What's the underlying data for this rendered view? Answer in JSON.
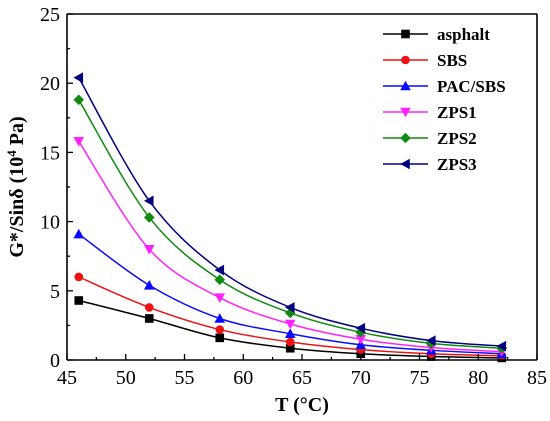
{
  "chart_data": {
    "type": "line",
    "xlabel": "T (°C)",
    "ylabel": "G*/Sinδ (10",
    "ylabel_sup": "4",
    "ylabel_tail": " Pa)",
    "xlim": [
      45,
      85
    ],
    "ylim": [
      0,
      25
    ],
    "xticks": [
      "45",
      "50",
      "55",
      "60",
      "65",
      "70",
      "75",
      "80",
      "85"
    ],
    "yticks": [
      "0",
      "5",
      "10",
      "15",
      "20",
      "25"
    ],
    "legend_position": "top-right",
    "x": [
      46,
      52,
      58,
      64,
      70,
      76,
      82
    ],
    "series": [
      {
        "name": "asphalt",
        "color": "#000000",
        "marker": "square",
        "values": [
          4.3,
          3.0,
          1.6,
          0.85,
          0.45,
          0.25,
          0.15
        ]
      },
      {
        "name": "SBS",
        "color": "#ee1111",
        "marker": "circle",
        "values": [
          6.0,
          3.8,
          2.2,
          1.3,
          0.75,
          0.45,
          0.3
        ]
      },
      {
        "name": "PAC/SBS",
        "color": "#0a0aff",
        "marker": "triangle-up",
        "values": [
          9.1,
          5.4,
          3.0,
          1.9,
          1.1,
          0.7,
          0.45
        ]
      },
      {
        "name": "ZPS1",
        "color": "#ff22ff",
        "marker": "triangle-down",
        "values": [
          15.8,
          8.0,
          4.5,
          2.6,
          1.5,
          0.9,
          0.6
        ]
      },
      {
        "name": "ZPS2",
        "color": "#108a10",
        "marker": "diamond",
        "values": [
          18.8,
          10.3,
          5.8,
          3.4,
          2.0,
          1.2,
          0.85
        ]
      },
      {
        "name": "ZPS3",
        "color": "#000080",
        "marker": "triangle-left",
        "values": [
          20.4,
          11.5,
          6.5,
          3.8,
          2.3,
          1.4,
          1.0
        ]
      }
    ]
  }
}
